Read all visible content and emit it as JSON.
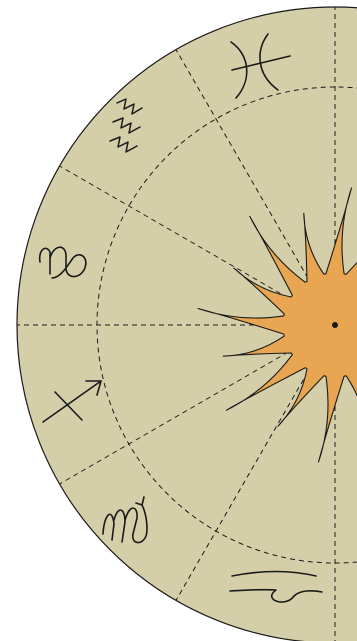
{
  "colors": {
    "background": "#ffffff",
    "wheel_fill": "#d5cfa9",
    "sun_fill": "#e8a652",
    "ink": "#1a1a1a"
  },
  "glyph_icons": [
    "pisces-icon",
    "aquarius-icon",
    "capricorn-icon",
    "sagittarius-icon",
    "scorpio-icon",
    "libra-icon"
  ],
  "center_icon": "sun-icon"
}
